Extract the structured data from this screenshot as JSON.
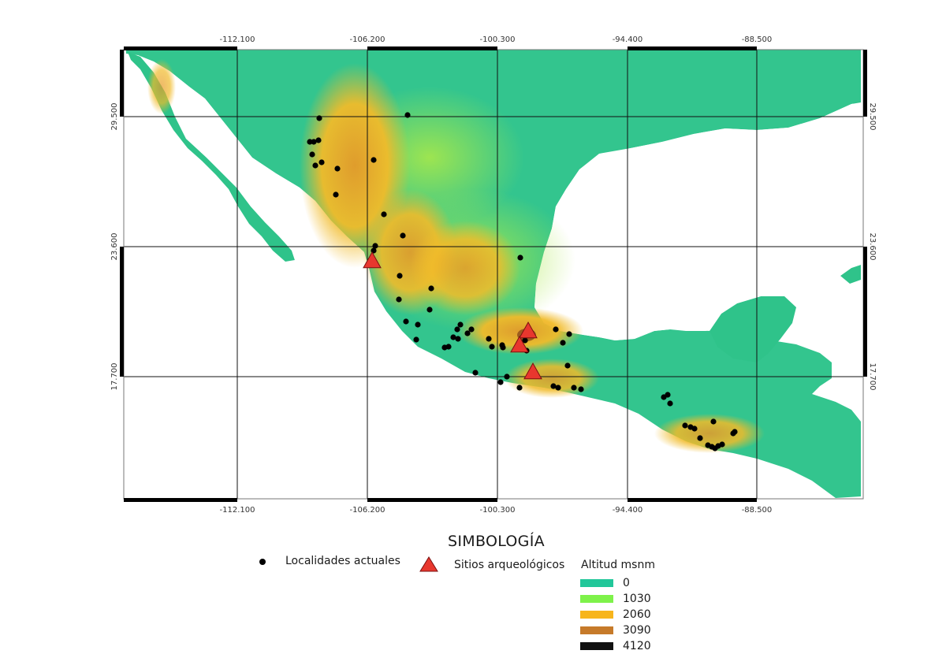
{
  "map": {
    "colors": {
      "sea": "#ffffff",
      "grid": "#111111",
      "frame_black": "#000000",
      "locality": "#000000",
      "site_fill": "#e8372e",
      "site_stroke": "#7a1010"
    },
    "ticks": {
      "top": [
        "-112.100",
        "-106.200",
        "-100.300",
        "-94.400",
        "-88.500"
      ],
      "bottom": [
        "-112.100",
        "-106.200",
        "-100.300",
        "-94.400",
        "-88.500"
      ],
      "left": [
        "29.500",
        "23.600",
        "17.700"
      ],
      "right": [
        "29.500",
        "23.600",
        "17.700"
      ]
    }
  },
  "legend": {
    "title": "SIMBOLOGÍA",
    "localities_label": "Localidades actuales",
    "sites_label": "Sitios arqueológicos",
    "altitude_title": "Altitud msnm",
    "altitude_classes": [
      {
        "label": "0",
        "color": "#22c79a"
      },
      {
        "label": "1030",
        "color": "#7ef24a"
      },
      {
        "label": "2060",
        "color": "#f7b51c"
      },
      {
        "label": "3090",
        "color": "#c67a2a"
      },
      {
        "label": "4120",
        "color": "#111111"
      }
    ]
  }
}
